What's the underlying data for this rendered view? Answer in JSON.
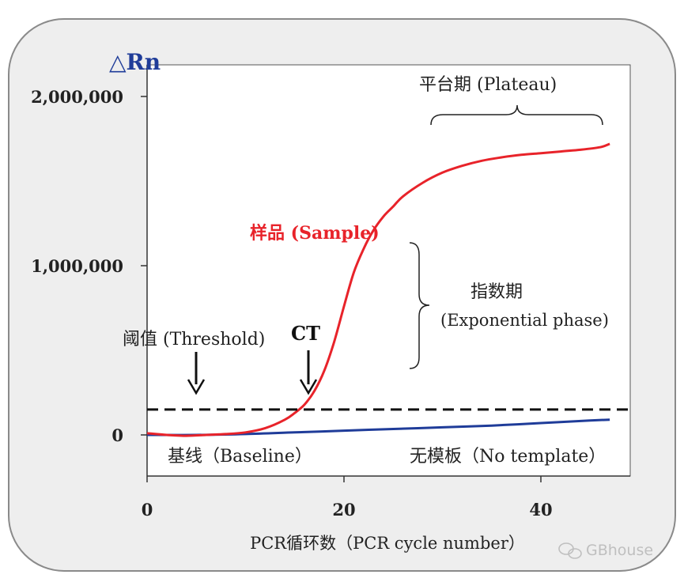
{
  "chart_data": {
    "type": "line",
    "ylabel": "△Rn",
    "xlabel": "PCR循环数（PCR cycle number）",
    "xlim": [
      0,
      49
    ],
    "ylim": [
      0,
      2000000
    ],
    "x_ticks": [
      {
        "value": 0,
        "label": "0"
      },
      {
        "value": 20,
        "label": "20"
      },
      {
        "value": 40,
        "label": "40"
      }
    ],
    "y_ticks": [
      {
        "value": 0,
        "label": "0"
      },
      {
        "value": 1000000,
        "label": "1,000,000"
      },
      {
        "value": 2000000,
        "label": "2,000,000"
      }
    ],
    "threshold": 150000,
    "ct": 16,
    "series": [
      {
        "name": "样品 (Sample)",
        "color": "#e8232a",
        "x": [
          0,
          2,
          4,
          6,
          8,
          10,
          12,
          14,
          15,
          16,
          17,
          18,
          19,
          20,
          21,
          22,
          23,
          24,
          25,
          26,
          28,
          30,
          32,
          34,
          36,
          38,
          40,
          42,
          44,
          46,
          47
        ],
        "y": [
          10000,
          0,
          -5000,
          0,
          5000,
          15000,
          40000,
          90000,
          130000,
          180000,
          260000,
          380000,
          550000,
          760000,
          960000,
          1100000,
          1210000,
          1290000,
          1350000,
          1410000,
          1490000,
          1550000,
          1590000,
          1620000,
          1640000,
          1655000,
          1665000,
          1675000,
          1685000,
          1700000,
          1720000
        ]
      },
      {
        "name": "无模板（No template）",
        "color": "#1f3c99",
        "x": [
          0,
          5,
          10,
          15,
          20,
          25,
          30,
          35,
          40,
          45,
          47
        ],
        "y": [
          0,
          0,
          5000,
          15000,
          25000,
          35000,
          45000,
          55000,
          70000,
          85000,
          90000
        ]
      }
    ],
    "annotations": {
      "plateau": "平台期 (Plateau)",
      "sample": "样品 (Sample)",
      "exponential_cn": "指数期",
      "exponential_en": "(Exponential phase)",
      "threshold": "阈值 (Threshold)",
      "ct": "CT",
      "baseline": "基线（Baseline）",
      "no_template": "无模板（No template）"
    },
    "watermark": "GBhouse"
  },
  "colors": {
    "frame_bg": "#eeeeee",
    "frame_border": "#8a8a8a",
    "sample": "#e8232a",
    "no_template": "#1f3c99",
    "ylabel": "#1f3c99"
  }
}
